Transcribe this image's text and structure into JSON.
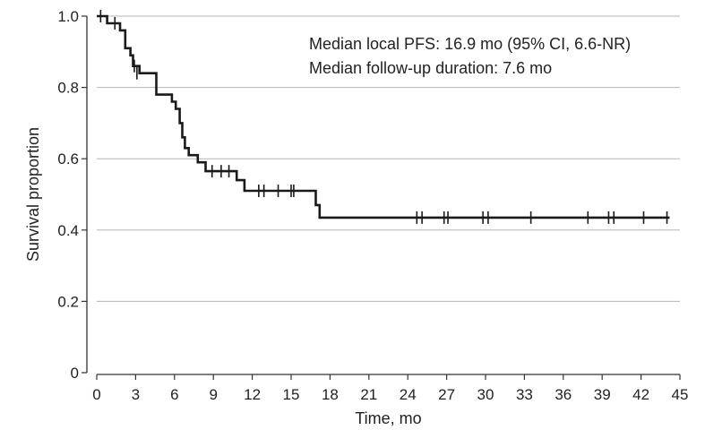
{
  "chart_data": {
    "type": "line",
    "xlabel": "Time, mo",
    "ylabel": "Survival proportion",
    "xlim": [
      0,
      45
    ],
    "ylim": [
      0,
      1.0
    ],
    "xticks": [
      0,
      3,
      6,
      9,
      12,
      15,
      18,
      21,
      24,
      27,
      30,
      33,
      36,
      39,
      42,
      45
    ],
    "yticks": [
      0,
      0.2,
      0.4,
      0.6,
      0.8,
      1.0
    ],
    "xtick_labels": [
      "0",
      "3",
      "6",
      "9",
      "12",
      "15",
      "18",
      "21",
      "24",
      "27",
      "30",
      "33",
      "36",
      "39",
      "42",
      "45"
    ],
    "ytick_labels": [
      "0",
      "0.2",
      "0.4",
      "0.6",
      "0.8",
      "1.0"
    ],
    "grid": "horizontal",
    "annotations": [
      "Median local PFS: 16.9 mo (95% CI, 6.6-NR)",
      "Median follow-up duration: 7.6 mo"
    ],
    "series": [
      {
        "style": "step",
        "color": "#1a1a1a",
        "points": [
          [
            0,
            1.0
          ],
          [
            0.8,
            1.0
          ],
          [
            0.8,
            0.98
          ],
          [
            1.8,
            0.98
          ],
          [
            1.8,
            0.96
          ],
          [
            2.2,
            0.96
          ],
          [
            2.2,
            0.91
          ],
          [
            2.6,
            0.91
          ],
          [
            2.6,
            0.89
          ],
          [
            2.8,
            0.89
          ],
          [
            2.8,
            0.86
          ],
          [
            3.3,
            0.86
          ],
          [
            3.3,
            0.84
          ],
          [
            4.6,
            0.84
          ],
          [
            4.6,
            0.78
          ],
          [
            5.8,
            0.78
          ],
          [
            5.8,
            0.76
          ],
          [
            6.1,
            0.76
          ],
          [
            6.1,
            0.74
          ],
          [
            6.4,
            0.74
          ],
          [
            6.4,
            0.7
          ],
          [
            6.6,
            0.7
          ],
          [
            6.6,
            0.66
          ],
          [
            6.8,
            0.66
          ],
          [
            6.8,
            0.63
          ],
          [
            7.1,
            0.63
          ],
          [
            7.1,
            0.61
          ],
          [
            7.8,
            0.61
          ],
          [
            7.8,
            0.59
          ],
          [
            8.4,
            0.59
          ],
          [
            8.4,
            0.565
          ],
          [
            10.8,
            0.565
          ],
          [
            10.8,
            0.54
          ],
          [
            11.4,
            0.54
          ],
          [
            11.4,
            0.51
          ],
          [
            16.9,
            0.51
          ],
          [
            16.9,
            0.47
          ],
          [
            17.2,
            0.47
          ],
          [
            17.2,
            0.435
          ],
          [
            44.2,
            0.435
          ]
        ],
        "censored": [
          [
            0.3,
            1.0
          ],
          [
            1.4,
            0.98
          ],
          [
            2.9,
            0.86
          ],
          [
            3.1,
            0.84
          ],
          [
            8.9,
            0.565
          ],
          [
            9.6,
            0.565
          ],
          [
            10.2,
            0.565
          ],
          [
            12.5,
            0.51
          ],
          [
            12.9,
            0.51
          ],
          [
            14.0,
            0.51
          ],
          [
            15.0,
            0.51
          ],
          [
            15.2,
            0.51
          ],
          [
            24.7,
            0.435
          ],
          [
            25.1,
            0.435
          ],
          [
            26.8,
            0.435
          ],
          [
            27.1,
            0.435
          ],
          [
            29.8,
            0.435
          ],
          [
            30.2,
            0.435
          ],
          [
            33.5,
            0.435
          ],
          [
            37.9,
            0.435
          ],
          [
            39.5,
            0.435
          ],
          [
            39.9,
            0.435
          ],
          [
            42.2,
            0.435
          ],
          [
            44.0,
            0.435
          ]
        ]
      }
    ]
  }
}
